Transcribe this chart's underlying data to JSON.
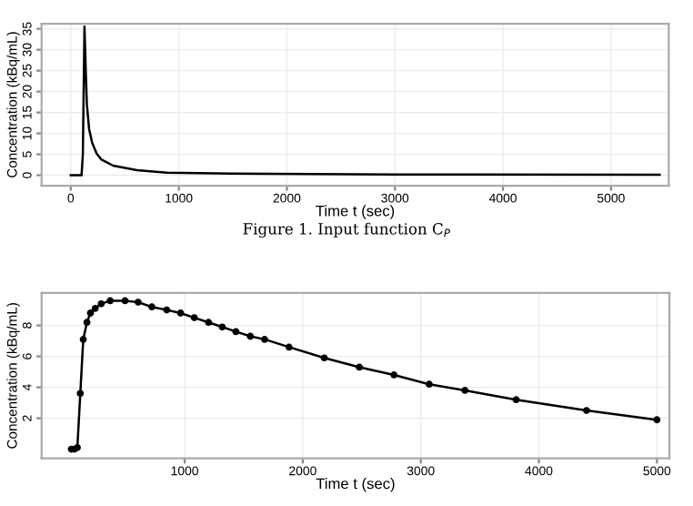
{
  "chart_data": [
    {
      "type": "line",
      "xlabel": "Time t (sec)",
      "ylabel": "Concentration (kBq/mL)",
      "annotations": [
        "Figure 1. Input function C$_{P}$"
      ],
      "x": [
        0,
        100,
        112,
        127,
        140,
        149,
        170,
        199,
        240,
        281,
        392,
        613,
        889,
        1500,
        3000,
        5450
      ],
      "series": [
        {
          "color": "#000000",
          "values": [
            0,
            0,
            5,
            35.5,
            24,
            17,
            11,
            7.7,
            5.2,
            3.8,
            2.3,
            1.2,
            0.6,
            0.4,
            0.2,
            0.1
          ]
        }
      ],
      "xlim": [
        -270,
        5534
      ],
      "ylim": [
        -2.5,
        36.2
      ],
      "xticks": [
        0,
        1000,
        2000,
        3000,
        4000,
        5000
      ],
      "yticks": [
        0,
        5,
        10,
        15,
        20,
        25,
        30,
        35
      ],
      "grid": true,
      "marker": "none",
      "line_style": "solid"
    },
    {
      "type": "line",
      "xlabel": "Time t (sec)",
      "ylabel": "Concentration (kBq/mL)",
      "x": [
        40,
        66,
        91,
        116,
        141,
        172,
        202,
        242,
        293,
        369,
        495,
        606,
        722,
        848,
        965,
        1081,
        1202,
        1318,
        1434,
        1556,
        1677,
        1884,
        2182,
        2480,
        2773,
        3071,
        3374,
        3808,
        4404,
        5000
      ],
      "series": [
        {
          "color": "#000000",
          "values": [
            0,
            0,
            0.1,
            3.6,
            7.1,
            8.2,
            8.8,
            9.1,
            9.4,
            9.6,
            9.6,
            9.5,
            9.2,
            9.0,
            8.8,
            8.5,
            8.2,
            7.9,
            7.6,
            7.3,
            7.1,
            6.6,
            5.9,
            5.3,
            4.8,
            4.2,
            3.8,
            3.2,
            2.5,
            1.9
          ]
        }
      ],
      "xlim": [
        -212,
        5106
      ],
      "ylim": [
        -0.6,
        10.1
      ],
      "xticks": [
        1000,
        2000,
        3000,
        4000,
        5000
      ],
      "yticks": [
        2,
        4,
        6,
        8
      ],
      "grid": true,
      "marker": "circle",
      "line_style": "solid"
    }
  ]
}
